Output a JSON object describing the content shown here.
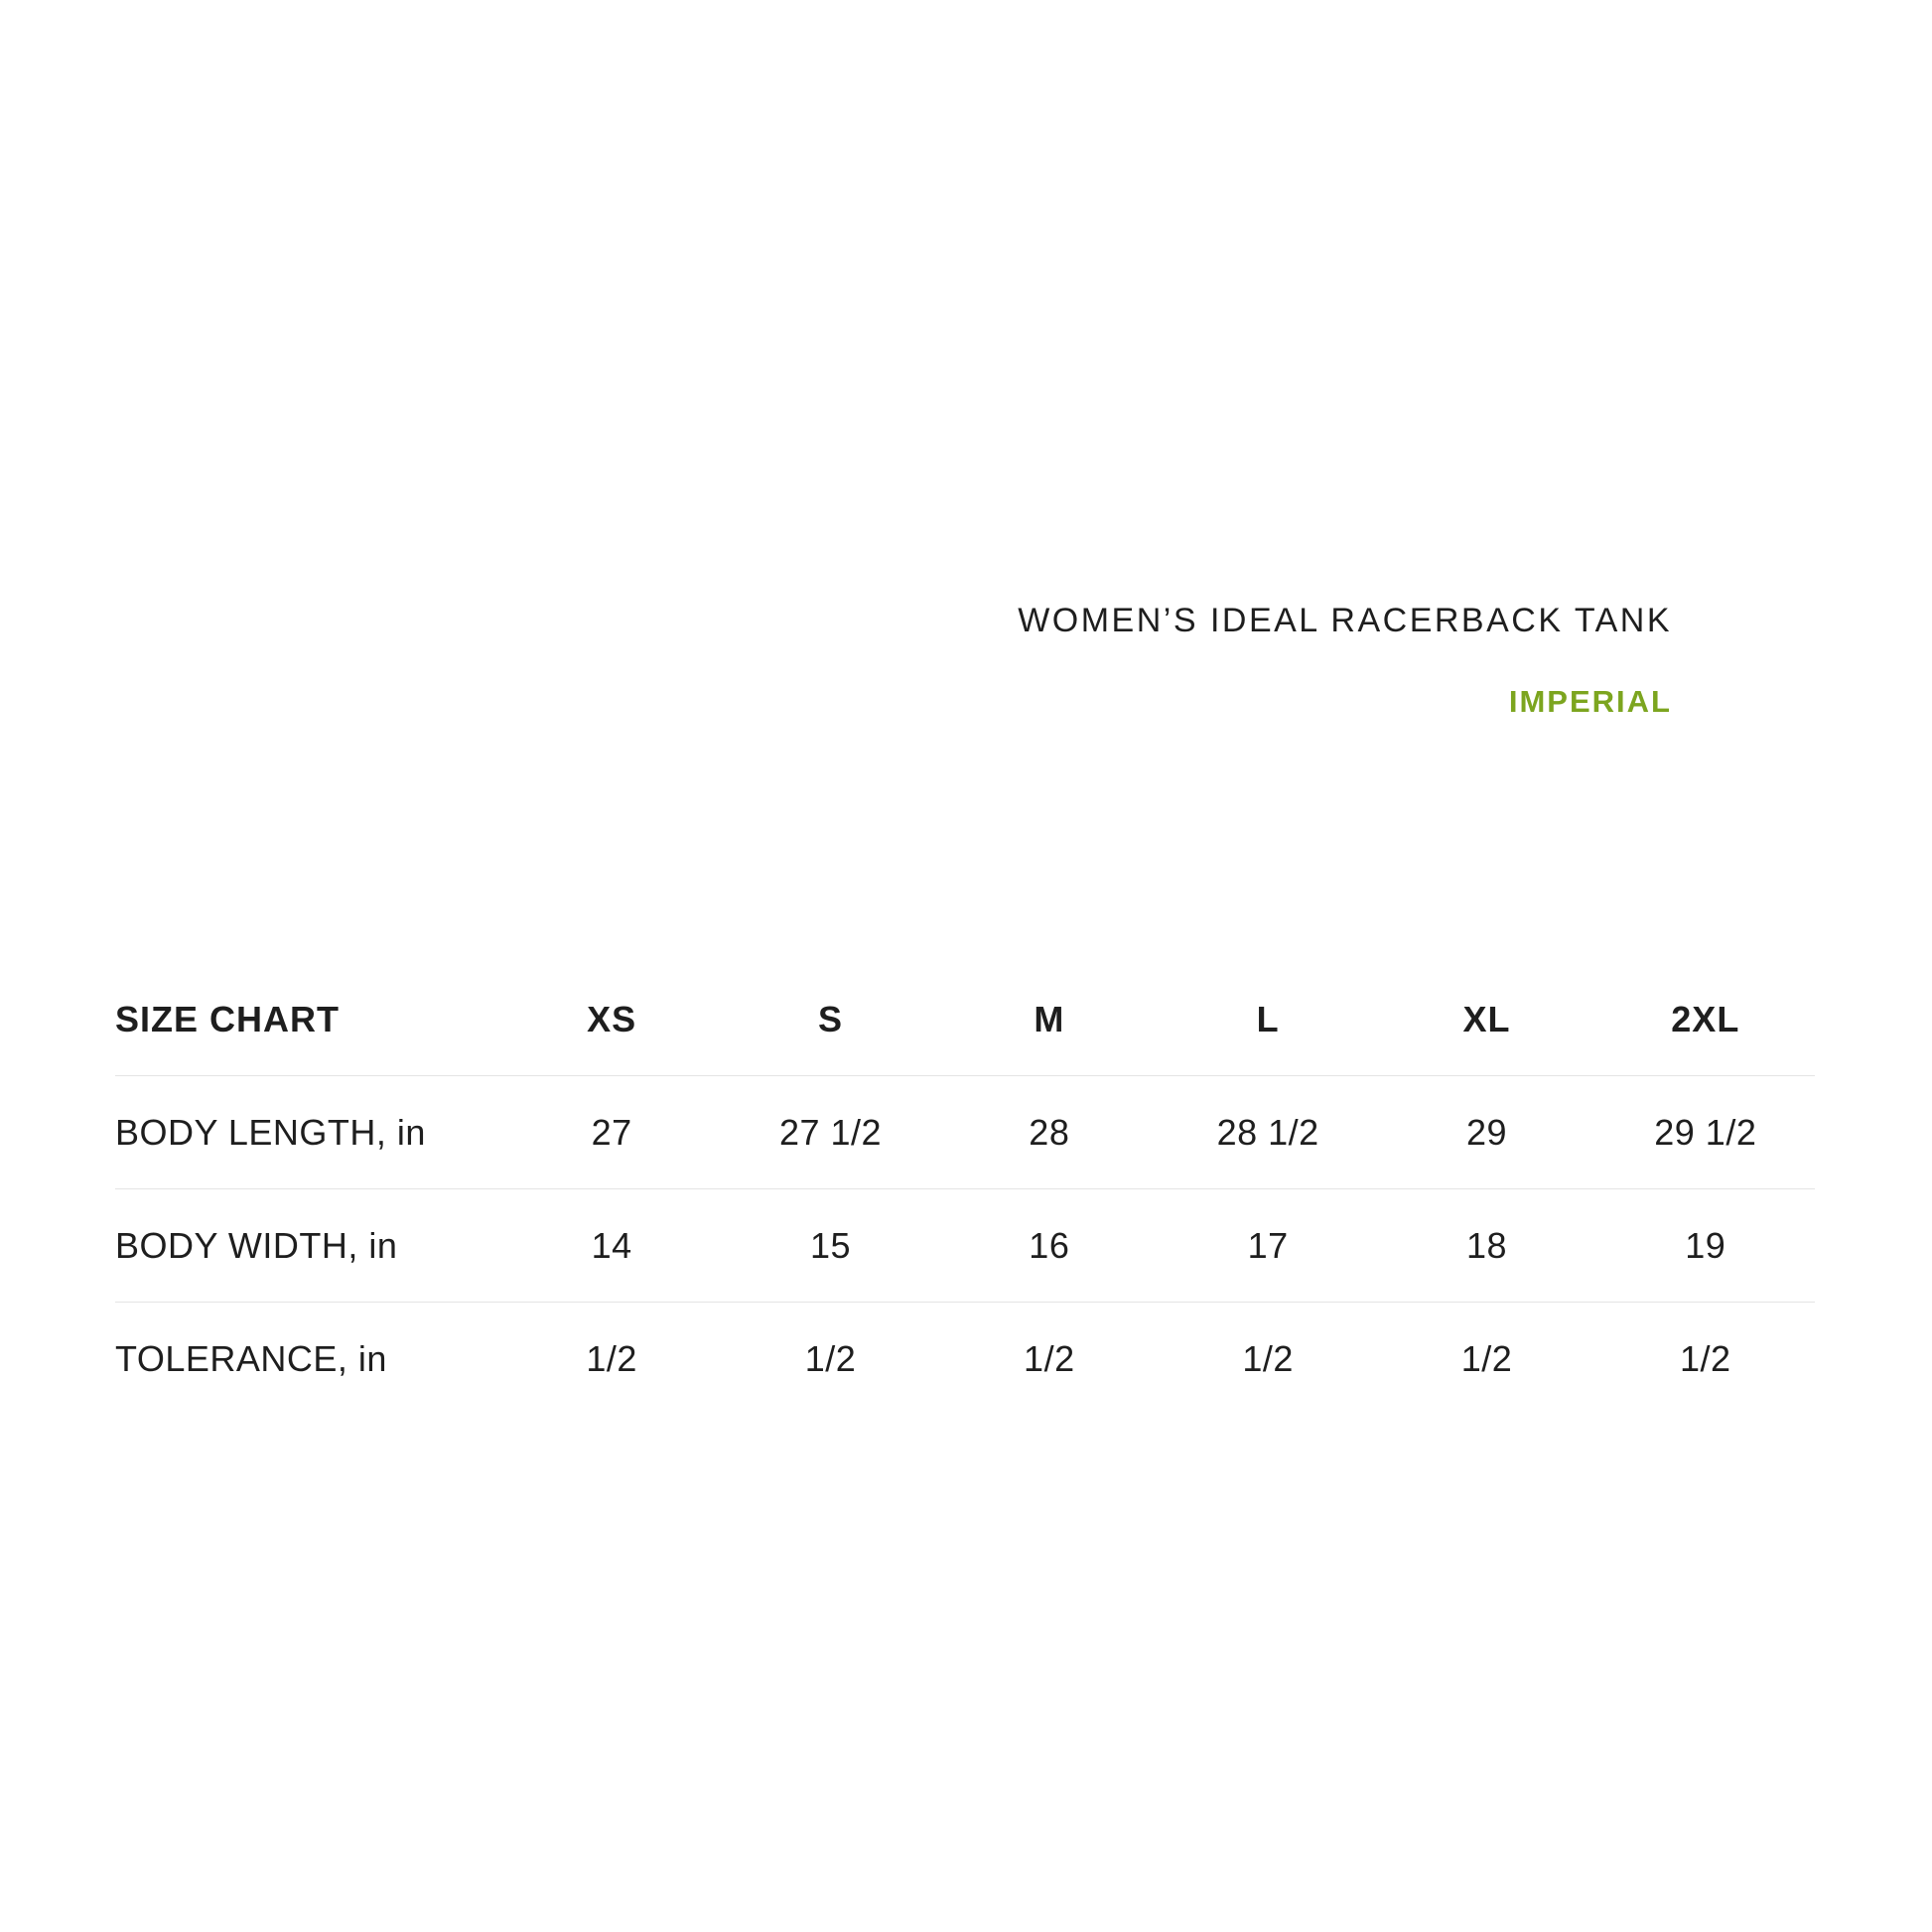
{
  "header": {
    "product_title": "WOMEN’S IDEAL RACERBACK TANK",
    "units_label": "IMPERIAL"
  },
  "colors": {
    "accent_green": "#7ca51f",
    "text": "#1e1e1e",
    "divider": "#e4e4e4",
    "background": "#ffffff"
  },
  "table": {
    "title": "SIZE CHART",
    "columns": [
      "XS",
      "S",
      "M",
      "L",
      "XL",
      "2XL"
    ],
    "rows": [
      {
        "label": "BODY LENGTH, in",
        "values": [
          "27",
          "27 1/2",
          "28",
          "28 1/2",
          "29",
          "29 1/2"
        ]
      },
      {
        "label": "BODY WIDTH, in",
        "values": [
          "14",
          "15",
          "16",
          "17",
          "18",
          "19"
        ]
      },
      {
        "label": "TOLERANCE, in",
        "values": [
          "1/2",
          "1/2",
          "1/2",
          "1/2",
          "1/2",
          "1/2"
        ]
      }
    ]
  },
  "chart_data": {
    "type": "table",
    "title": "SIZE CHART",
    "subtitle": "WOMEN’S IDEAL RACERBACK TANK — IMPERIAL",
    "columns": [
      "XS",
      "S",
      "M",
      "L",
      "XL",
      "2XL"
    ],
    "rows": [
      {
        "label": "BODY LENGTH, in",
        "values": [
          27,
          27.5,
          28,
          28.5,
          29,
          29.5
        ]
      },
      {
        "label": "BODY WIDTH, in",
        "values": [
          14,
          15,
          16,
          17,
          18,
          19
        ]
      },
      {
        "label": "TOLERANCE, in",
        "values": [
          0.5,
          0.5,
          0.5,
          0.5,
          0.5,
          0.5
        ]
      }
    ],
    "units": "inches",
    "layout": {
      "grid": "horizontal-dividers-only",
      "header_style": "bold",
      "legend_position": "none"
    }
  }
}
